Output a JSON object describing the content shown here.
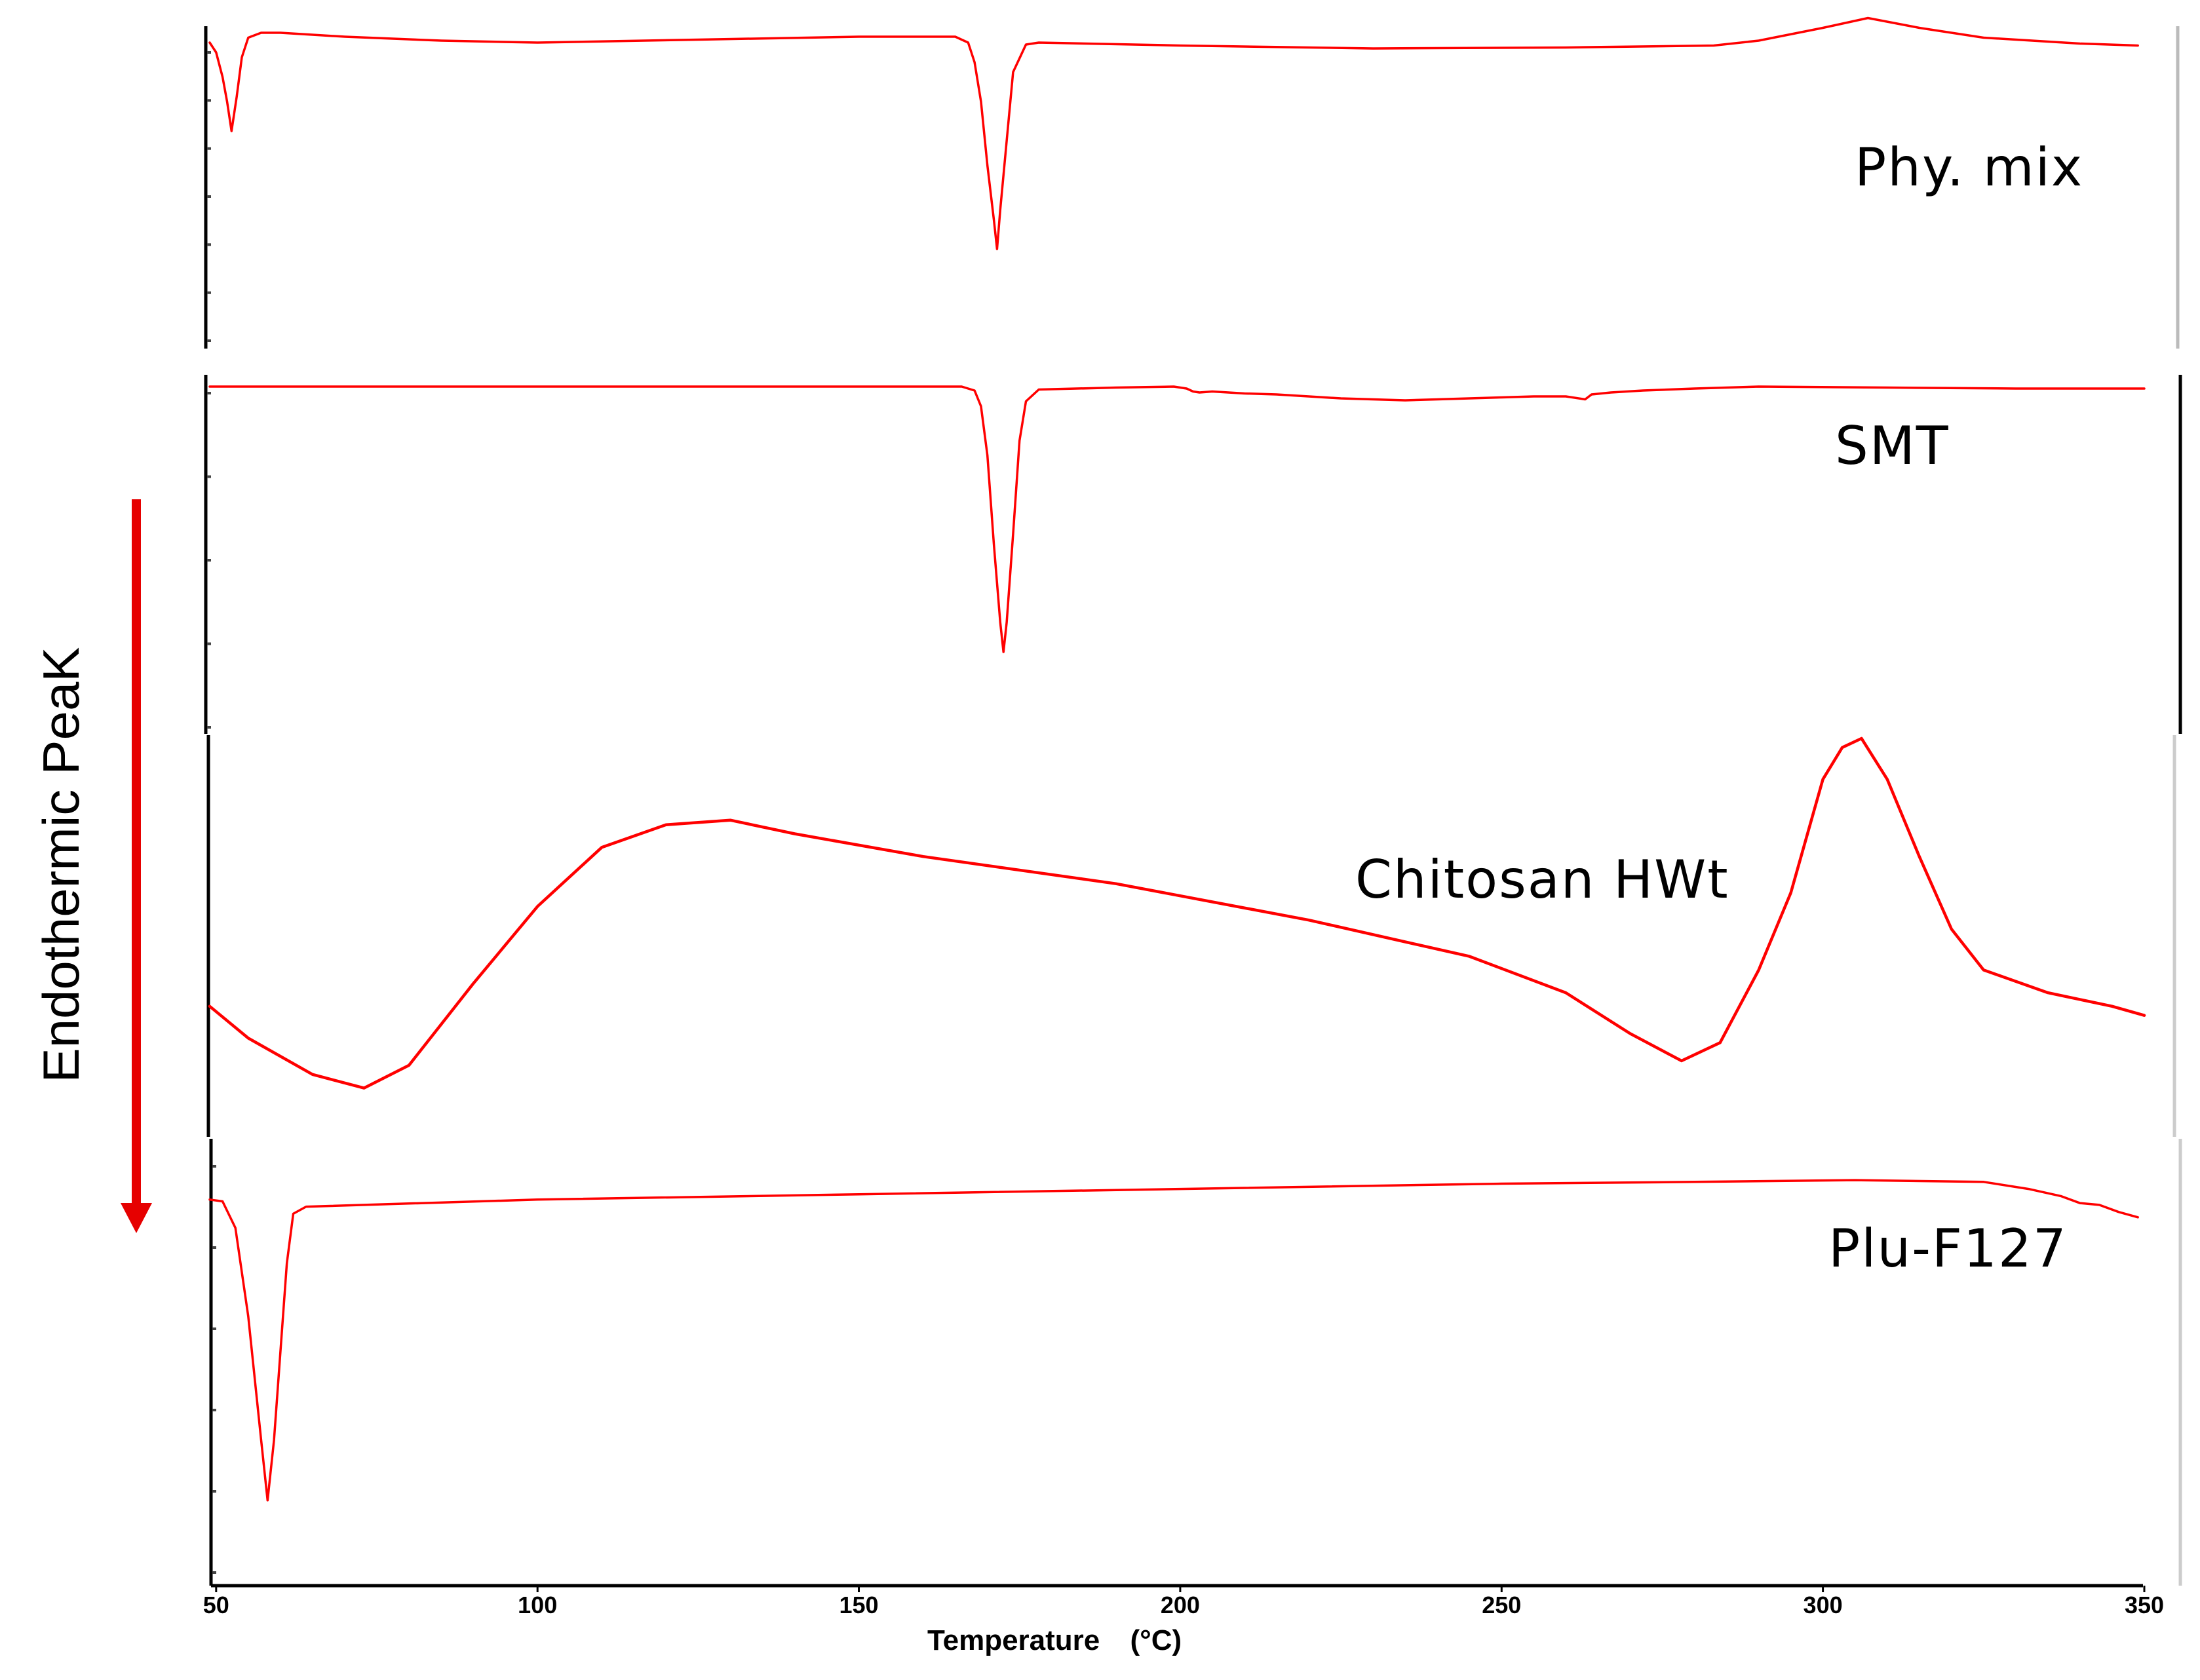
{
  "chart_data": {
    "type": "line",
    "title": "",
    "xlabel_text": "Temperature",
    "xlabel_unit": "(°C)",
    "ylabel": "Endothermic PeaK",
    "ylabel_arrow": "down",
    "xlim": [
      49,
      350
    ],
    "x_ticks": [
      "50",
      "100",
      "150",
      "200",
      "250",
      "300",
      "350"
    ],
    "grid": false,
    "line_color": "#ff0000",
    "accent_color": "#e60000",
    "layout": "stacked",
    "series": [
      {
        "name": "Phy. mix",
        "points": [
          [
            49,
            0.9
          ],
          [
            50,
            0.8
          ],
          [
            51,
            0.55
          ],
          [
            51.7,
            0.3
          ],
          [
            52.4,
            0.0
          ],
          [
            53.2,
            0.35
          ],
          [
            54,
            0.75
          ],
          [
            55,
            0.95
          ],
          [
            57,
            1.0
          ],
          [
            60,
            1.0
          ],
          [
            70,
            0.96
          ],
          [
            85,
            0.92
          ],
          [
            100,
            0.9
          ],
          [
            125,
            0.93
          ],
          [
            150,
            0.96
          ],
          [
            165,
            0.96
          ],
          [
            167,
            0.9
          ],
          [
            168,
            0.7
          ],
          [
            169,
            0.3
          ],
          [
            170,
            -0.35
          ],
          [
            171,
            -0.9
          ],
          [
            171.5,
            -1.2
          ],
          [
            172,
            -0.8
          ],
          [
            173,
            -0.1
          ],
          [
            174,
            0.6
          ],
          [
            176,
            0.88
          ],
          [
            178,
            0.9
          ],
          [
            200,
            0.87
          ],
          [
            230,
            0.84
          ],
          [
            260,
            0.85
          ],
          [
            283,
            0.87
          ],
          [
            290,
            0.92
          ],
          [
            300,
            1.05
          ],
          [
            307,
            1.15
          ],
          [
            315,
            1.05
          ],
          [
            325,
            0.95
          ],
          [
            340,
            0.89
          ],
          [
            349,
            0.87
          ]
        ]
      },
      {
        "name": "SMT",
        "points": [
          [
            49,
            1.0
          ],
          [
            100,
            1.0
          ],
          [
            150,
            1.0
          ],
          [
            166,
            1.0
          ],
          [
            168,
            0.96
          ],
          [
            169,
            0.8
          ],
          [
            170,
            0.3
          ],
          [
            171,
            -0.6
          ],
          [
            172,
            -1.4
          ],
          [
            172.5,
            -1.7
          ],
          [
            173,
            -1.4
          ],
          [
            174,
            -0.5
          ],
          [
            175,
            0.45
          ],
          [
            176,
            0.85
          ],
          [
            178,
            0.97
          ],
          [
            190,
            0.99
          ],
          [
            199,
            1.0
          ],
          [
            201,
            0.98
          ],
          [
            202,
            0.95
          ],
          [
            203,
            0.94
          ],
          [
            205,
            0.95
          ],
          [
            210,
            0.93
          ],
          [
            215,
            0.92
          ],
          [
            220,
            0.9
          ],
          [
            225,
            0.88
          ],
          [
            230,
            0.87
          ],
          [
            235,
            0.86
          ],
          [
            240,
            0.87
          ],
          [
            245,
            0.88
          ],
          [
            250,
            0.89
          ],
          [
            255,
            0.9
          ],
          [
            260,
            0.9
          ],
          [
            263,
            0.87
          ],
          [
            264,
            0.92
          ],
          [
            267,
            0.94
          ],
          [
            272,
            0.96
          ],
          [
            280,
            0.98
          ],
          [
            290,
            1.0
          ],
          [
            310,
            0.99
          ],
          [
            330,
            0.98
          ],
          [
            350,
            0.98
          ]
        ]
      },
      {
        "name": "Chitosan HWt",
        "points": [
          [
            49,
            0.55
          ],
          [
            55,
            0.48
          ],
          [
            65,
            0.4
          ],
          [
            73,
            0.37
          ],
          [
            80,
            0.42
          ],
          [
            90,
            0.6
          ],
          [
            100,
            0.77
          ],
          [
            110,
            0.9
          ],
          [
            120,
            0.95
          ],
          [
            130,
            0.96
          ],
          [
            140,
            0.93
          ],
          [
            160,
            0.88
          ],
          [
            190,
            0.82
          ],
          [
            220,
            0.74
          ],
          [
            245,
            0.66
          ],
          [
            260,
            0.58
          ],
          [
            270,
            0.49
          ],
          [
            278,
            0.43
          ],
          [
            284,
            0.47
          ],
          [
            290,
            0.63
          ],
          [
            295,
            0.8
          ],
          [
            300,
            1.05
          ],
          [
            303,
            1.12
          ],
          [
            306,
            1.14
          ],
          [
            310,
            1.05
          ],
          [
            315,
            0.88
          ],
          [
            320,
            0.72
          ],
          [
            325,
            0.63
          ],
          [
            335,
            0.58
          ],
          [
            345,
            0.55
          ],
          [
            350,
            0.53
          ]
        ]
      },
      {
        "name": "Plu-F127",
        "points": [
          [
            49,
            0.86
          ],
          [
            51,
            0.85
          ],
          [
            53,
            0.7
          ],
          [
            55,
            0.2
          ],
          [
            57,
            -0.5
          ],
          [
            58,
            -0.84
          ],
          [
            59,
            -0.5
          ],
          [
            60,
            0.0
          ],
          [
            61,
            0.5
          ],
          [
            62,
            0.78
          ],
          [
            64,
            0.82
          ],
          [
            100,
            0.86
          ],
          [
            150,
            0.89
          ],
          [
            200,
            0.92
          ],
          [
            250,
            0.95
          ],
          [
            280,
            0.96
          ],
          [
            305,
            0.97
          ],
          [
            325,
            0.96
          ],
          [
            332,
            0.92
          ],
          [
            337,
            0.88
          ],
          [
            340,
            0.84
          ],
          [
            343,
            0.83
          ],
          [
            346,
            0.79
          ],
          [
            349,
            0.76
          ]
        ]
      }
    ]
  }
}
